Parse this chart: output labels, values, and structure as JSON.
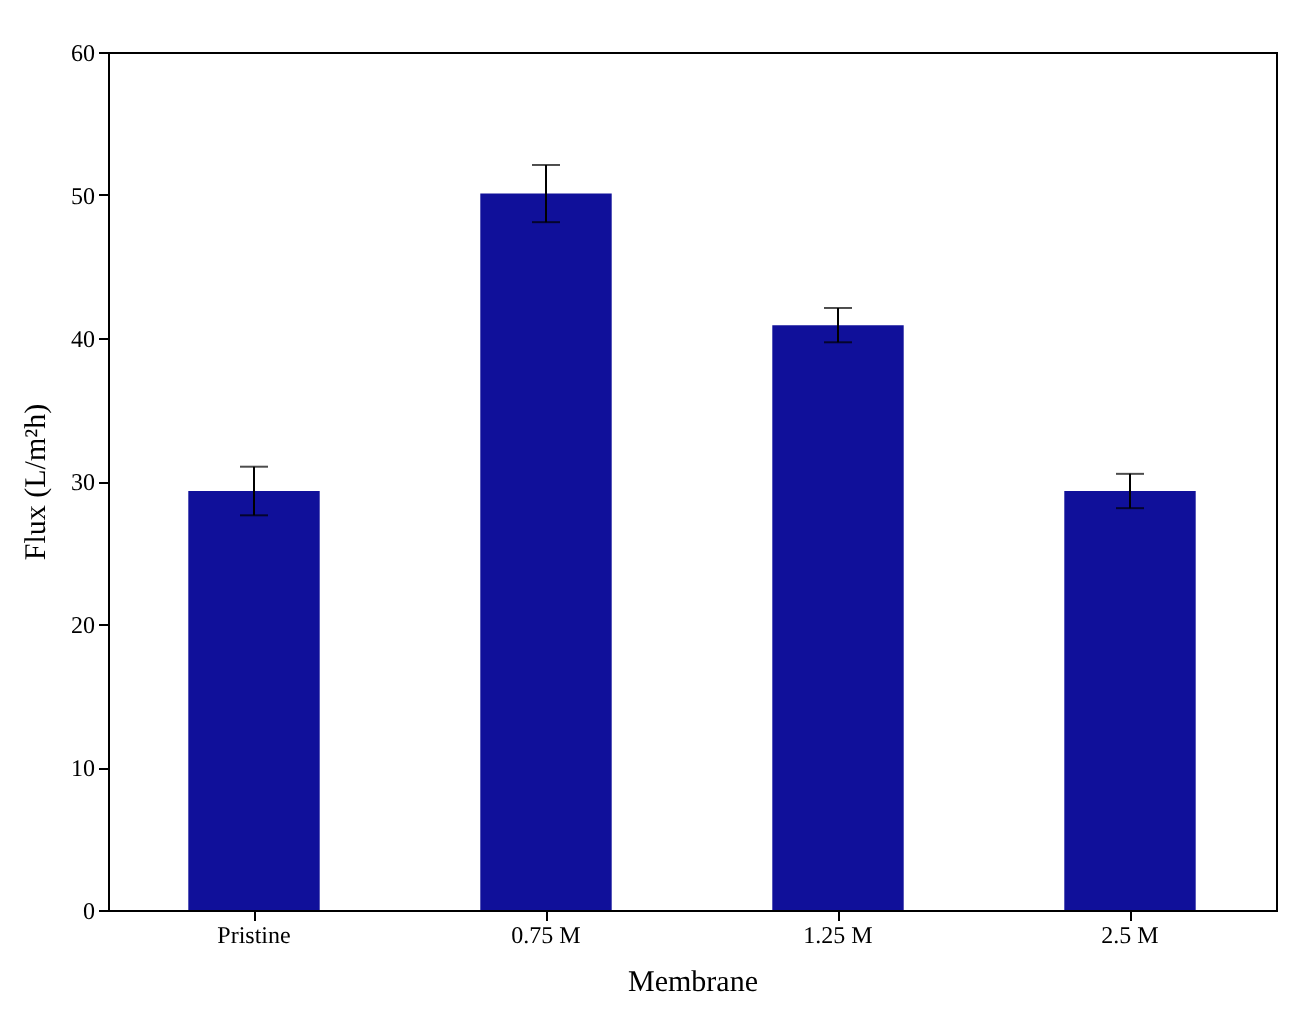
{
  "chart_data": {
    "type": "bar",
    "xlabel": "Membrane",
    "ylabel": "Flux (L/m²h)",
    "categories": [
      "Pristine",
      "0.75 M",
      "1.25 M",
      "2.5 M"
    ],
    "values": [
      29.3,
      50.1,
      40.9,
      29.3
    ],
    "errors": [
      1.7,
      2.0,
      1.2,
      1.2
    ],
    "color": "#10109a",
    "ylim": [
      0,
      60
    ],
    "yticks": [
      0,
      10,
      20,
      30,
      40,
      50,
      60
    ],
    "grid": false
  }
}
